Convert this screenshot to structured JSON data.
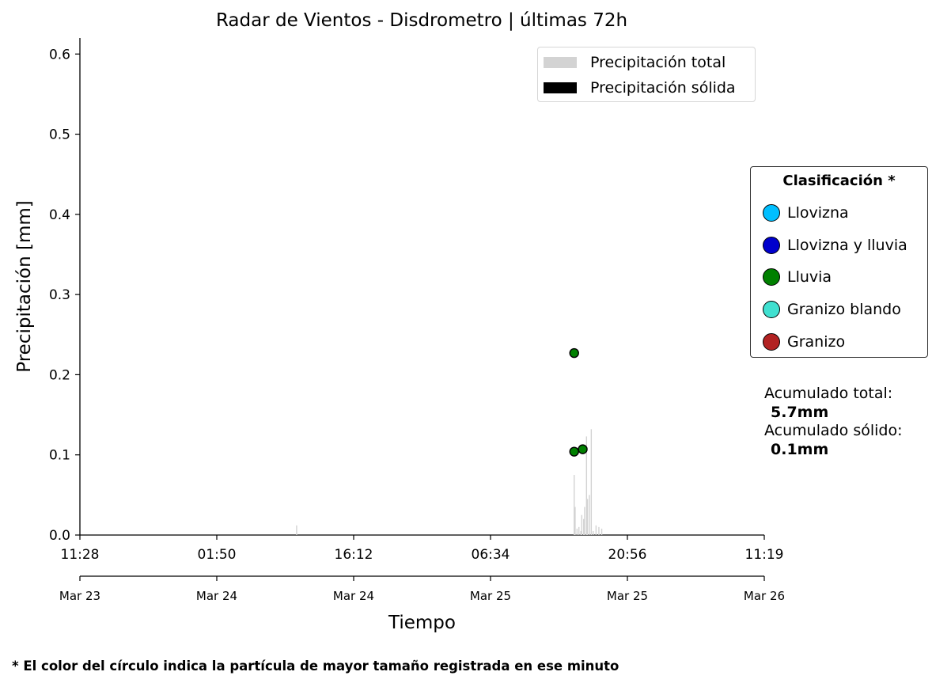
{
  "chart_data": {
    "type": "bar",
    "title": "Radar de Vientos - Disdrometro  |  últimas 72h",
    "xlabel": "Tiempo",
    "ylabel": "Precipitación [mm]",
    "ylim": [
      0,
      0.62
    ],
    "yticks": [
      "0.0",
      "0.1",
      "0.2",
      "0.3",
      "0.4",
      "0.5",
      "0.6"
    ],
    "xlim_hours": [
      0,
      72
    ],
    "xticks_time": [
      "11:28",
      "01:50",
      "16:12",
      "06:34",
      "20:56",
      "11:19"
    ],
    "xticks_date": [
      "Mar 23",
      "Mar 24",
      "Mar 24",
      "Mar 25",
      "Mar 25",
      "Mar 26"
    ],
    "grid": false,
    "legend_position": "top-right",
    "legend": [
      {
        "label": "Precipitación total",
        "color": "#d3d3d3"
      },
      {
        "label": "Precipitación sólida",
        "color": "#000000"
      }
    ],
    "series": [
      {
        "name": "Precipitación total",
        "x_hours": [
          22.8,
          52.0,
          52.1,
          52.3,
          52.5,
          52.7,
          52.8,
          53.0,
          53.1,
          53.3,
          53.4,
          53.6,
          53.8,
          54.0,
          54.3,
          54.6,
          54.9
        ],
        "values": [
          0.012,
          0.075,
          0.035,
          0.008,
          0.01,
          0.005,
          0.025,
          0.02,
          0.035,
          0.123,
          0.045,
          0.05,
          0.132,
          0.005,
          0.012,
          0.01,
          0.008
        ]
      },
      {
        "name": "Precipitación sólida",
        "x_hours": [],
        "values": []
      }
    ],
    "points": [
      {
        "x_hours": 52.0,
        "value": 0.227,
        "class": "Lluvia"
      },
      {
        "x_hours": 52.0,
        "value": 0.104,
        "class": "Lluvia"
      },
      {
        "x_hours": 52.9,
        "value": 0.107,
        "class": "Lluvia"
      }
    ]
  },
  "classification": {
    "title": "Clasificación *",
    "items": [
      {
        "label": "Llovizna",
        "color": "#00bfff"
      },
      {
        "label": "Llovizna y lluvia",
        "color": "#0000cd"
      },
      {
        "label": "Lluvia",
        "color": "#008000"
      },
      {
        "label": "Granizo blando",
        "color": "#40e0d0"
      },
      {
        "label": "Granizo",
        "color": "#b22222"
      }
    ]
  },
  "accumulated": {
    "total_label": "Acumulado total:",
    "total_value": "5.7mm",
    "solid_label": "Acumulado sólido:",
    "solid_value": "0.1mm"
  },
  "footnote": "* El color del círculo indica la partícula de mayor tamaño registrada en ese minuto"
}
